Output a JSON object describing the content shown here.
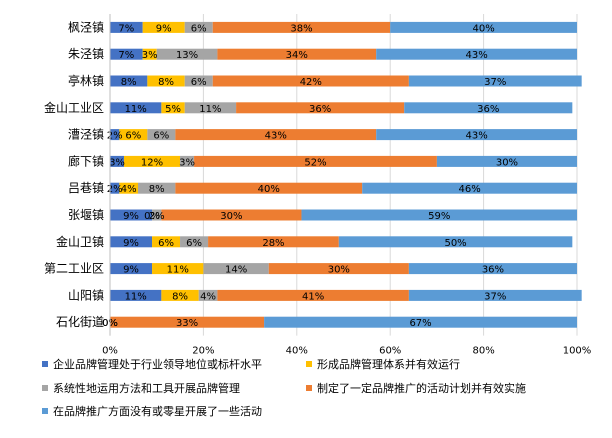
{
  "chart_data": {
    "type": "bar",
    "orientation": "horizontal",
    "stacked": "percent",
    "title": "",
    "xlabel": "",
    "ylabel": "",
    "xlim": [
      0,
      100
    ],
    "x_ticks": [
      "0%",
      "20%",
      "40%",
      "60%",
      "80%",
      "100%"
    ],
    "x_tick_values": [
      0,
      20,
      40,
      60,
      80,
      100
    ],
    "grid": true,
    "legend_position": "bottom",
    "categories": [
      "枫泾镇",
      "朱泾镇",
      "亭林镇",
      "金山工业区",
      "漕泾镇",
      "廊下镇",
      "吕巷镇",
      "张堰镇",
      "金山卫镇",
      "第二工业区",
      "山阳镇",
      "石化街道"
    ],
    "series": [
      {
        "name": "企业品牌管理处于行业领导地位或标杆水平",
        "color": "#4472C4",
        "values": [
          7,
          7,
          8,
          11,
          2,
          3,
          2,
          9,
          9,
          9,
          11,
          0
        ],
        "labels": [
          "7%",
          "7%",
          "8%",
          "11%",
          "2%",
          "3%",
          "2%",
          "9%",
          "9%",
          "9%",
          "11%",
          "0%"
        ]
      },
      {
        "name": "形成品牌管理体系并有效运行",
        "color": "#FFC000",
        "values": [
          9,
          3,
          8,
          5,
          6,
          12,
          4,
          0,
          6,
          11,
          8,
          0
        ],
        "labels": [
          "9%",
          "3%",
          "8%",
          "5%",
          "6%",
          "12%",
          "4%",
          "0%",
          "6%",
          "11%",
          "8%",
          "0%"
        ]
      },
      {
        "name": "系统性地运用方法和工具开展品牌管理",
        "color": "#A5A5A5",
        "values": [
          6,
          13,
          6,
          11,
          6,
          3,
          8,
          2,
          6,
          14,
          4,
          0
        ],
        "labels": [
          "6%",
          "13%",
          "6%",
          "11%",
          "6%",
          "3%",
          "8%",
          "2%",
          "6%",
          "14%",
          "4%",
          ""
        ]
      },
      {
        "name": "制定了一定品牌推广的活动计划并有效实施",
        "color": "#ED7D31",
        "values": [
          38,
          34,
          42,
          36,
          43,
          52,
          40,
          30,
          28,
          30,
          41,
          33
        ],
        "labels": [
          "38%",
          "34%",
          "42%",
          "36%",
          "43%",
          "52%",
          "40%",
          "30%",
          "28%",
          "30%",
          "41%",
          "33%"
        ]
      },
      {
        "name": "在品牌推广方面没有或零星开展了一些活动",
        "color": "#5B9BD5",
        "values": [
          40,
          43,
          37,
          36,
          43,
          30,
          46,
          59,
          50,
          36,
          37,
          67
        ],
        "labels": [
          "40%",
          "43%",
          "37%",
          "36%",
          "43%",
          "30%",
          "46%",
          "59%",
          "50%",
          "36%",
          "37%",
          "67%"
        ]
      }
    ]
  }
}
